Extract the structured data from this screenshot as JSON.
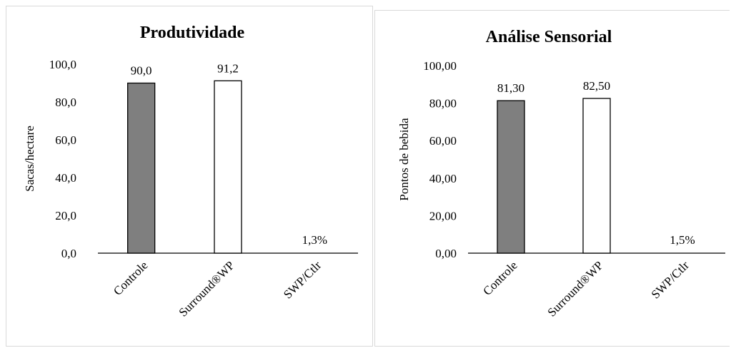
{
  "chart_data": [
    {
      "type": "bar",
      "title": "Produtividade",
      "ylabel": "Sacas/hectare",
      "xlabel": "",
      "categories": [
        "Controle",
        "Surround®WP",
        "SWP/Ctlr"
      ],
      "values": [
        90.0,
        91.2,
        null
      ],
      "data_labels": [
        "90,0",
        "91,2",
        "1,3%"
      ],
      "bar_fills": [
        "#7f7f7f",
        "#ffffff",
        "#ffffff"
      ],
      "ylim": [
        0,
        100
      ],
      "yticks": [
        0,
        20,
        40,
        60,
        80,
        100
      ],
      "ytick_labels": [
        "0,0",
        "20,0",
        "40,0",
        "60,0",
        "80,0",
        "100,0"
      ],
      "grid": false,
      "legend": "none"
    },
    {
      "type": "bar",
      "title": "Análise  Sensorial",
      "ylabel": "Pontos de bebida",
      "xlabel": "",
      "categories": [
        "Controle",
        "Surround®WP",
        "SWP/Ctlr"
      ],
      "values": [
        81.3,
        82.5,
        null
      ],
      "data_labels": [
        "81,30",
        "82,50",
        "1,5%"
      ],
      "bar_fills": [
        "#7f7f7f",
        "#ffffff",
        "#ffffff"
      ],
      "ylim": [
        0,
        100
      ],
      "yticks": [
        0,
        20,
        40,
        60,
        80,
        100
      ],
      "ytick_labels": [
        "0,00",
        "20,00",
        "40,00",
        "60,00",
        "80,00",
        "100,00"
      ],
      "grid": false,
      "legend": "none"
    }
  ]
}
